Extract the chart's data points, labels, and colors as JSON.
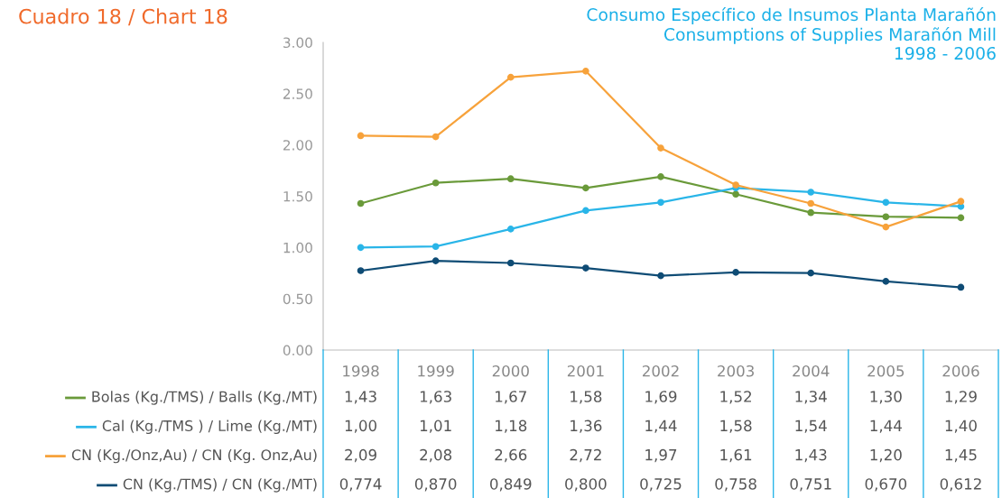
{
  "chart_data": {
    "type": "line",
    "title": "Cuadro 18 / Chart 18",
    "subtitle": "Consumo Específico de Insumos Planta Marañón\nConsumptions of Supplies Marañón Mill\n1998 - 2006",
    "categories": [
      "1998",
      "1999",
      "2000",
      "2001",
      "2002",
      "2003",
      "2004",
      "2005",
      "2006"
    ],
    "ylim": [
      0,
      3
    ],
    "yticks": [
      {
        "value": 0,
        "label": "0.00"
      },
      {
        "value": 0.5,
        "label": "0.50"
      },
      {
        "value": 1,
        "label": "1.00"
      },
      {
        "value": 1.5,
        "label": "1.50"
      },
      {
        "value": 2,
        "label": "2.00"
      },
      {
        "value": 2.5,
        "label": "2.50"
      },
      {
        "value": 3,
        "label": "3.00"
      }
    ],
    "grid": false,
    "legend": "bottom left",
    "marker": "circle",
    "line_style": "solid",
    "series": [
      {
        "name": "Bolas (Kg./TMS) / Balls (Kg./MT)",
        "color": "#6a9a3a",
        "values": [
          1.43,
          1.63,
          1.67,
          1.58,
          1.69,
          1.52,
          1.34,
          1.3,
          1.29
        ],
        "value_labels": [
          "1,43",
          "1,63",
          "1,67",
          "1,58",
          "1,69",
          "1,52",
          "1,34",
          "1,30",
          "1,29"
        ]
      },
      {
        "name": "Cal (Kg./TMS ) / Lime (Kg./MT)",
        "color": "#29b5e8",
        "values": [
          1.0,
          1.01,
          1.18,
          1.36,
          1.44,
          1.58,
          1.54,
          1.44,
          1.4
        ],
        "value_labels": [
          "1,00",
          "1,01",
          "1,18",
          "1,36",
          "1,44",
          "1,58",
          "1,54",
          "1,44",
          "1,40"
        ]
      },
      {
        "name": "CN (Kg./Onz,Au) / CN (Kg. Onz,Au)",
        "color": "#f7a23b",
        "values": [
          2.09,
          2.08,
          2.66,
          2.72,
          1.97,
          1.61,
          1.43,
          1.2,
          1.45
        ],
        "value_labels": [
          "2,09",
          "2,08",
          "2,66",
          "2,72",
          "1,97",
          "1,61",
          "1,43",
          "1,20",
          "1,45"
        ]
      },
      {
        "name": "CN (Kg./TMS) / CN (Kg./MT)",
        "color": "#0f4c75",
        "values": [
          0.774,
          0.87,
          0.849,
          0.8,
          0.725,
          0.758,
          0.751,
          0.67,
          0.612
        ],
        "value_labels": [
          "0,774",
          "0,870",
          "0,849",
          "0,800",
          "0,725",
          "0,758",
          "0,751",
          "0,670",
          "0,612"
        ]
      }
    ]
  }
}
